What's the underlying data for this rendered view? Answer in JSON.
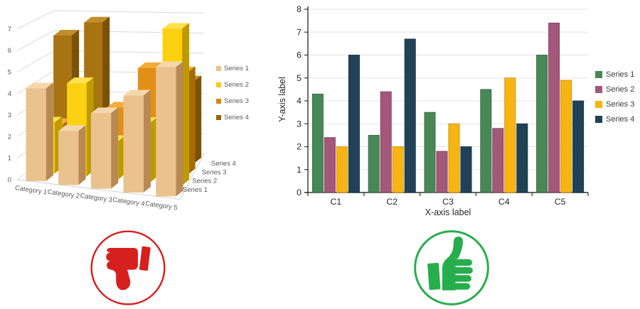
{
  "page": {
    "background": "#FFFFFF"
  },
  "chart_data": [
    {
      "id": "bad-3d-column-chart",
      "type": "bar",
      "projection": "3d",
      "verdict": "bad",
      "title": "",
      "categories": [
        "Category 1",
        "Category 2",
        "Category 3",
        "Category 4",
        "Category 5"
      ],
      "depth_axis_labels": [
        "Series 1",
        "Series 2",
        "Series 3",
        "Series 4"
      ],
      "value_ticks": [
        0,
        1,
        2,
        3,
        4,
        5,
        6,
        7
      ],
      "ylim": [
        0,
        7.6
      ],
      "grid": true,
      "legend_position": "right",
      "text_color": "#595959",
      "grid_color": "#D9D9D9",
      "series": [
        {
          "name": "Series 1",
          "values": [
            4.3,
            2.5,
            3.5,
            4.5,
            6.0
          ],
          "colors": {
            "front": "#EAC28D",
            "side": "#B98954",
            "top": "#F4D8AC",
            "legend": "#E8C18C"
          }
        },
        {
          "name": "Series 2",
          "values": [
            2.4,
            4.4,
            1.8,
            2.8,
            7.4
          ],
          "colors": {
            "front": "#FCD111",
            "side": "#BD9B00",
            "top": "#FFE150",
            "legend": "#FFC90F"
          }
        },
        {
          "name": "Series 3",
          "values": [
            2.0,
            2.0,
            3.0,
            5.0,
            4.9
          ],
          "colors": {
            "front": "#E28F16",
            "side": "#A86A05",
            "top": "#F0AD3C",
            "legend": "#D6870F"
          }
        },
        {
          "name": "Series 4",
          "values": [
            6.0,
            6.7,
            2.0,
            3.0,
            4.0
          ],
          "colors": {
            "front": "#A87311",
            "side": "#7A5105",
            "top": "#C18E2A",
            "legend": "#99600B"
          }
        }
      ]
    },
    {
      "id": "good-2d-column-chart",
      "type": "bar",
      "projection": "2d",
      "verdict": "good",
      "title": "",
      "categories": [
        "C1",
        "C2",
        "C3",
        "C4",
        "C5"
      ],
      "xlabel": "X-axis label",
      "ylabel": "Y-axis label",
      "ylim": [
        0,
        8
      ],
      "ytick_step": 1,
      "grid": true,
      "legend_position": "right",
      "text_color": "#262626",
      "grid_color": "#E3E3E3",
      "axis_color": "#333333",
      "series": [
        {
          "name": "Series 1",
          "color": "#488756",
          "border": "#35673F",
          "values": [
            4.3,
            2.5,
            3.5,
            4.5,
            6.0
          ]
        },
        {
          "name": "Series 2",
          "color": "#A3577B",
          "border": "#7C3F5D",
          "values": [
            2.4,
            4.4,
            1.8,
            2.8,
            7.4
          ]
        },
        {
          "name": "Series 3",
          "color": "#F7B513",
          "border": "#C78C08",
          "values": [
            2.0,
            2.0,
            3.0,
            5.0,
            4.9
          ]
        },
        {
          "name": "Series 4",
          "color": "#204257",
          "border": "#152E3D",
          "values": [
            6.0,
            6.7,
            2.0,
            3.0,
            4.0
          ]
        }
      ]
    }
  ],
  "verdicts": {
    "bad": {
      "icon": "thumbs-down",
      "color": "#D6201E"
    },
    "good": {
      "icon": "thumbs-up",
      "color": "#27AE4C"
    }
  }
}
